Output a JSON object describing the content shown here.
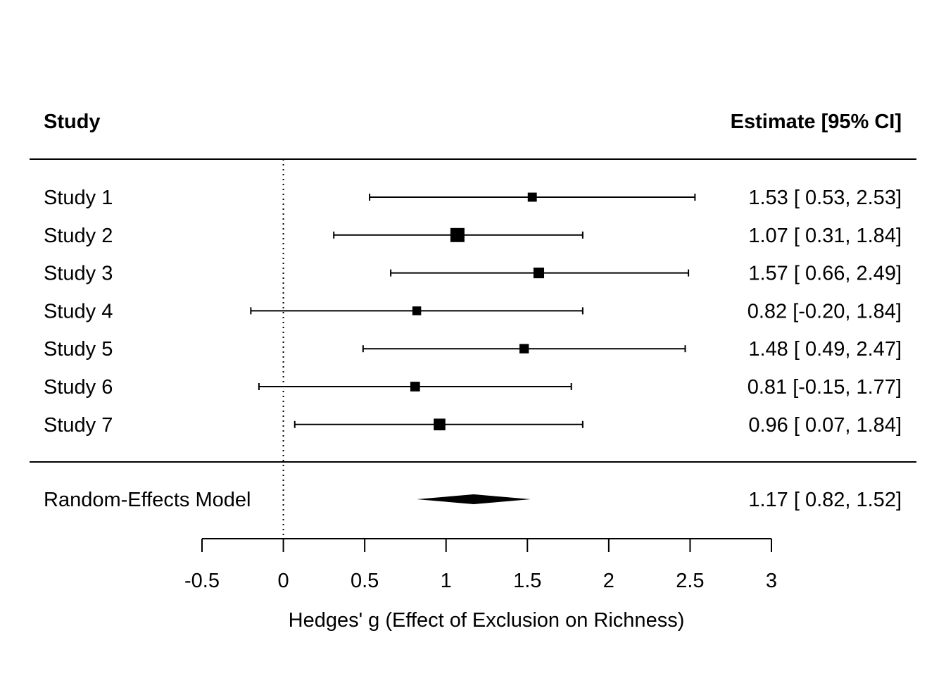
{
  "chart_data": {
    "type": "forest",
    "header": {
      "left": "Study",
      "right": "Estimate [95% CI]"
    },
    "studies": [
      {
        "name": "Study 1",
        "estimate": 1.53,
        "lower": 0.53,
        "upper": 2.53,
        "weight": 0.08,
        "label": "1.53 [ 0.53, 2.53]"
      },
      {
        "name": "Study 2",
        "estimate": 1.07,
        "lower": 0.31,
        "upper": 1.84,
        "weight": 0.33,
        "label": "1.07 [ 0.31, 1.84]"
      },
      {
        "name": "Study 3",
        "estimate": 1.57,
        "lower": 0.66,
        "upper": 2.49,
        "weight": 0.14,
        "label": "1.57 [ 0.66, 2.49]"
      },
      {
        "name": "Study 4",
        "estimate": 0.82,
        "lower": -0.2,
        "upper": 1.84,
        "weight": 0.07,
        "label": "0.82 [-0.20, 1.84]"
      },
      {
        "name": "Study 5",
        "estimate": 1.48,
        "lower": 0.49,
        "upper": 2.47,
        "weight": 0.09,
        "label": "1.48 [ 0.49, 2.47]"
      },
      {
        "name": "Study 6",
        "estimate": 0.81,
        "lower": -0.15,
        "upper": 1.77,
        "weight": 0.1,
        "label": "0.81 [-0.15, 1.77]"
      },
      {
        "name": "Study 7",
        "estimate": 0.96,
        "lower": 0.07,
        "upper": 1.84,
        "weight": 0.19,
        "label": "0.96 [ 0.07, 1.84]"
      }
    ],
    "summary": {
      "name": "Random-Effects Model",
      "estimate": 1.17,
      "lower": 0.82,
      "upper": 1.52,
      "label": "1.17 [ 0.82, 1.52]"
    },
    "reference_line": 0,
    "xlim": [
      -0.5,
      3
    ],
    "x_ticks": [
      -0.5,
      0,
      0.5,
      1,
      1.5,
      2,
      2.5,
      3
    ],
    "x_tick_labels": [
      "-0.5",
      "0",
      "0.5",
      "1",
      "1.5",
      "2",
      "2.5",
      "3"
    ],
    "xlabel": "Hedges' g (Effect of Exclusion on Richness)",
    "grid": false,
    "colors": {
      "ink": "#000000",
      "background": "#ffffff"
    }
  }
}
